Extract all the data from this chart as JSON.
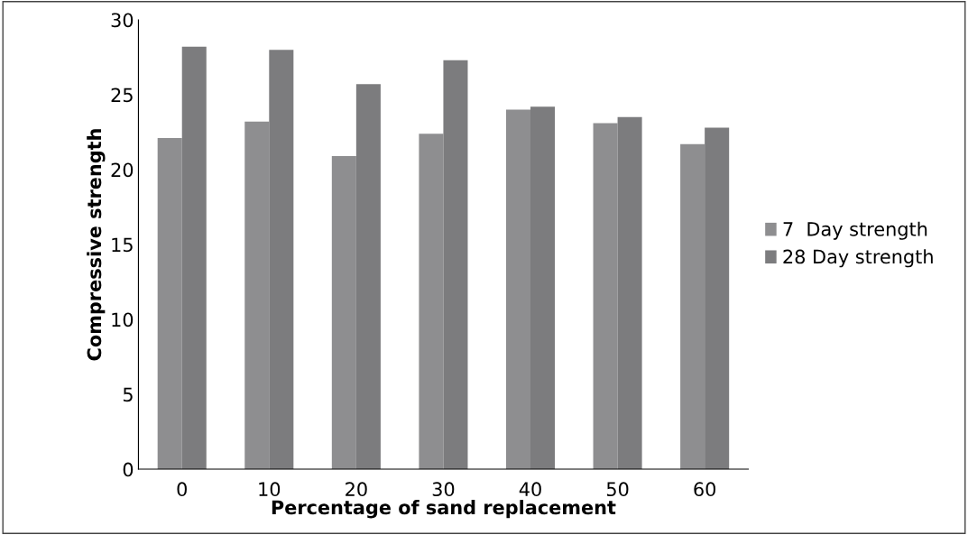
{
  "chart_data": {
    "type": "bar",
    "xlabel": "Percentage of sand replacement",
    "ylabel": "Compressive strength",
    "categories": [
      "0",
      "10",
      "20",
      "30",
      "40",
      "50",
      "60"
    ],
    "series": [
      {
        "name": "7  Day strength",
        "color": "#8e8e90",
        "values": [
          22.1,
          23.2,
          20.9,
          22.4,
          24.0,
          23.1,
          21.7
        ]
      },
      {
        "name": "28 Day strength",
        "color": "#7c7c7e",
        "values": [
          28.2,
          28.0,
          25.7,
          27.3,
          24.2,
          23.5,
          22.8
        ]
      }
    ],
    "ylim": [
      0,
      30
    ],
    "yticks": [
      0,
      5,
      10,
      15,
      20,
      25,
      30
    ],
    "grid": false,
    "legend": "right"
  }
}
